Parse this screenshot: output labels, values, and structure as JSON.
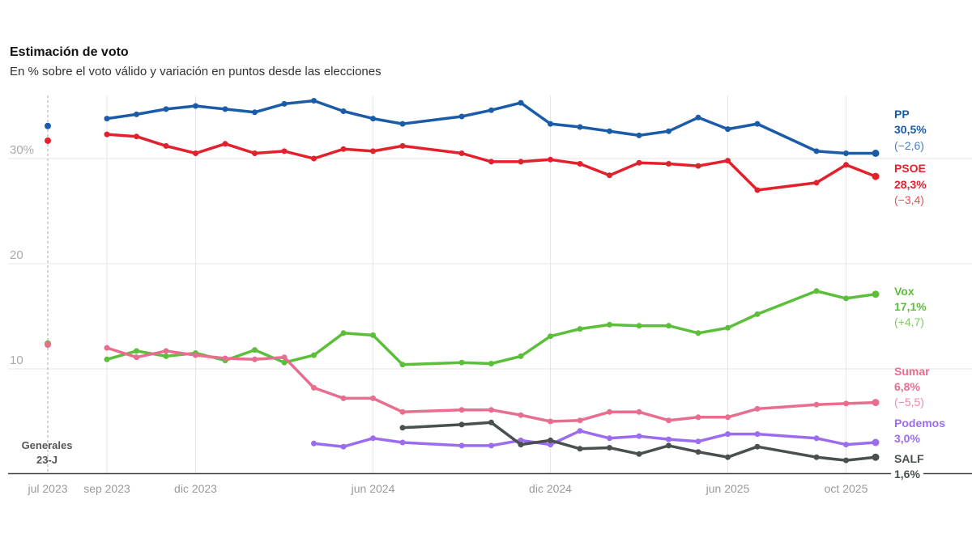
{
  "chart_data": {
    "type": "line",
    "title": "Estimación de voto",
    "subtitle": "En % sobre el voto válido y variación en puntos desde las elecciones",
    "ylim": [
      0,
      36
    ],
    "y_ticks": [
      {
        "value": 30,
        "label": "30%"
      },
      {
        "value": 20,
        "label": "20"
      },
      {
        "value": 10,
        "label": "10"
      }
    ],
    "x_ticks": [
      {
        "date": "2023-07",
        "label": "jul 2023"
      },
      {
        "date": "2023-09",
        "label": "sep 2023"
      },
      {
        "date": "2023-12",
        "label": "dic 2023"
      },
      {
        "date": "2024-06",
        "label": "jun 2024"
      },
      {
        "date": "2024-12",
        "label": "dic 2024"
      },
      {
        "date": "2025-06",
        "label": "jun 2025"
      },
      {
        "date": "2025-10",
        "label": "oct 2025"
      }
    ],
    "grid": true,
    "election": {
      "date": "2023-07",
      "label_line1": "Generales",
      "label_line2": "23-J"
    },
    "x": [
      "2023-09",
      "2023-10",
      "2023-11",
      "2023-12",
      "2024-01",
      "2024-02",
      "2024-03",
      "2024-04",
      "2024-05",
      "2024-06",
      "2024-07",
      "2024-09",
      "2024-10",
      "2024-11",
      "2024-12",
      "2025-01",
      "2025-02",
      "2025-03",
      "2025-04",
      "2025-05",
      "2025-06",
      "2025-07",
      "2025-09",
      "2025-10",
      "2025-11"
    ],
    "series": [
      {
        "name": "PP",
        "color": "#1a5ca8",
        "label_value": "30,5%",
        "label_change": "(−2,6)",
        "election_value": 33.1,
        "values": [
          33.8,
          34.2,
          34.7,
          35.0,
          34.7,
          34.4,
          35.2,
          35.5,
          34.5,
          33.8,
          33.3,
          34.0,
          34.6,
          35.3,
          33.3,
          33.0,
          32.6,
          32.2,
          32.6,
          33.9,
          32.8,
          33.3,
          30.7,
          30.5,
          30.5
        ]
      },
      {
        "name": "PSOE",
        "color": "#e3212d",
        "label_value": "28,3%",
        "label_change": "(−3,4)",
        "election_value": 31.7,
        "values": [
          32.3,
          32.1,
          31.2,
          30.5,
          31.4,
          30.5,
          30.7,
          30.0,
          30.9,
          30.7,
          31.2,
          30.5,
          29.7,
          29.7,
          29.9,
          29.5,
          28.4,
          29.6,
          29.5,
          29.3,
          29.8,
          27.0,
          27.7,
          29.4,
          28.3
        ]
      },
      {
        "name": "Vox",
        "color": "#5cbf3a",
        "label_value": "17,1%",
        "label_change": "(+4,7)",
        "election_value": 12.4,
        "values": [
          10.9,
          11.7,
          11.2,
          11.5,
          10.8,
          11.8,
          10.6,
          11.3,
          13.4,
          13.2,
          10.4,
          10.6,
          10.5,
          11.2,
          13.1,
          13.8,
          14.2,
          14.1,
          14.1,
          13.4,
          13.9,
          15.2,
          17.4,
          16.7,
          17.1
        ]
      },
      {
        "name": "Sumar",
        "color": "#e86d8e",
        "label_value": "6,8%",
        "label_change": "(−5,5)",
        "election_value": 12.3,
        "values": [
          12.0,
          11.1,
          11.7,
          11.3,
          11.0,
          10.9,
          11.1,
          8.2,
          7.2,
          7.2,
          5.9,
          6.1,
          6.1,
          5.6,
          5.0,
          5.1,
          5.9,
          5.9,
          5.1,
          5.4,
          5.4,
          6.2,
          6.6,
          6.7,
          6.8
        ]
      },
      {
        "name": "Podemos",
        "color": "#9b6cf0",
        "label_value": "3,0%",
        "values": [
          null,
          null,
          null,
          null,
          null,
          null,
          null,
          2.9,
          2.6,
          3.4,
          3.0,
          2.7,
          2.7,
          3.2,
          2.8,
          4.1,
          3.4,
          3.6,
          3.3,
          3.1,
          3.8,
          3.8,
          3.4,
          2.8,
          3.0
        ]
      },
      {
        "name": "SALF",
        "color": "#4a4f4f",
        "label_value": "1,6%",
        "values": [
          null,
          null,
          null,
          null,
          null,
          null,
          null,
          null,
          null,
          null,
          4.4,
          4.7,
          4.9,
          2.8,
          3.2,
          2.4,
          2.5,
          1.9,
          2.7,
          2.1,
          1.6,
          2.6,
          1.6,
          1.3,
          1.6
        ]
      }
    ]
  }
}
